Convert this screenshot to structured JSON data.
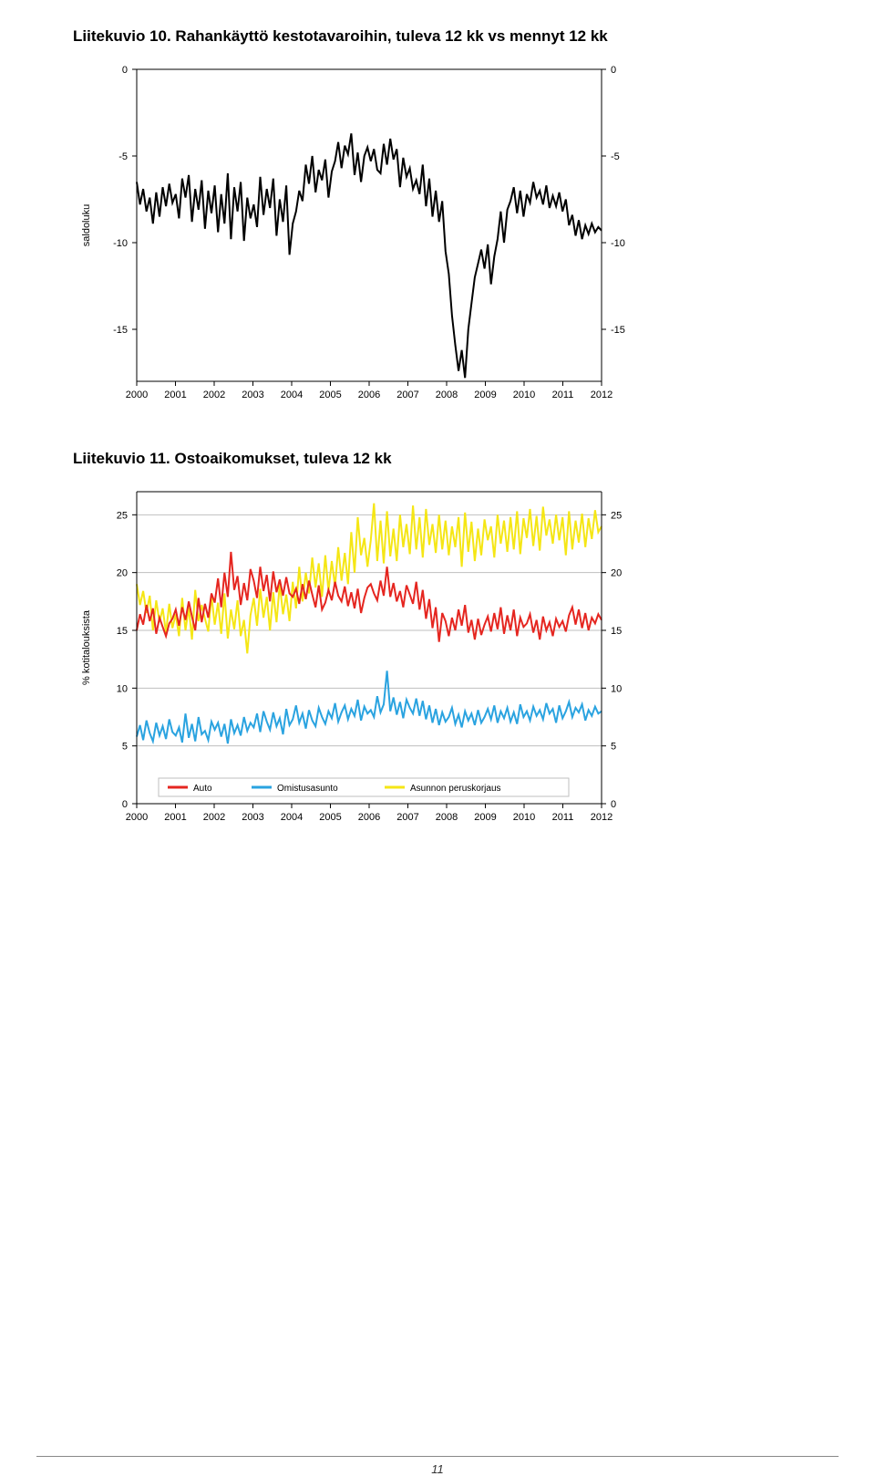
{
  "chart1": {
    "title": "Liitekuvio 10. Rahankäyttö kestotavaroihin, tuleva 12 kk vs mennyt 12 kk",
    "type": "line",
    "background_color": "#ffffff",
    "axis_color": "#000000",
    "grid_color": "#ffffff",
    "tick_fontsize": 11,
    "tick_color": "#000000",
    "ylabel": "saldoluku",
    "ylabel_fontsize": 11,
    "ylim": [
      -18,
      0
    ],
    "yticks": [
      0,
      -5,
      -10,
      -15
    ],
    "xlim": [
      2000,
      2012
    ],
    "xticks": [
      2000,
      2001,
      2002,
      2003,
      2004,
      2005,
      2006,
      2007,
      2008,
      2009,
      2010,
      2011,
      2012
    ],
    "line_color": "#000000",
    "line_width": 2,
    "data": [
      -6.5,
      -7.8,
      -6.9,
      -8.2,
      -7.4,
      -8.9,
      -7.1,
      -8.5,
      -6.8,
      -7.9,
      -6.6,
      -7.7,
      -7.2,
      -8.6,
      -6.3,
      -7.4,
      -6.1,
      -8.8,
      -6.9,
      -8.1,
      -6.4,
      -9.2,
      -7.0,
      -8.3,
      -6.7,
      -9.4,
      -7.2,
      -8.9,
      -6.0,
      -9.8,
      -6.8,
      -8.2,
      -6.5,
      -9.9,
      -7.4,
      -8.6,
      -7.8,
      -9.1,
      -6.2,
      -8.4,
      -6.9,
      -8.0,
      -6.3,
      -9.6,
      -7.5,
      -8.8,
      -6.7,
      -10.7,
      -8.9,
      -8.2,
      -7.0,
      -7.6,
      -5.5,
      -6.6,
      -5.0,
      -7.1,
      -5.8,
      -6.4,
      -5.2,
      -7.4,
      -5.9,
      -5.3,
      -4.2,
      -5.7,
      -4.4,
      -4.9,
      -3.7,
      -6.1,
      -4.8,
      -6.5,
      -5.0,
      -4.5,
      -5.3,
      -4.6,
      -5.8,
      -6.0,
      -4.3,
      -5.5,
      -4.0,
      -5.2,
      -4.6,
      -6.8,
      -5.1,
      -6.2,
      -5.7,
      -6.9,
      -6.4,
      -7.2,
      -5.5,
      -7.9,
      -6.3,
      -8.5,
      -7.0,
      -8.8,
      -7.6,
      -10.5,
      -11.8,
      -14.2,
      -15.9,
      -17.4,
      -16.2,
      -17.8,
      -15.0,
      -13.5,
      -12.0,
      -11.2,
      -10.4,
      -11.5,
      -10.1,
      -12.4,
      -10.8,
      -9.8,
      -8.2,
      -10.0,
      -8.1,
      -7.6,
      -6.8,
      -8.3,
      -7.0,
      -8.5,
      -7.2,
      -7.7,
      -6.5,
      -7.4,
      -7.0,
      -7.8,
      -6.7,
      -8.0,
      -7.3,
      -7.9,
      -7.1,
      -8.2,
      -7.5,
      -9.0,
      -8.4,
      -9.6,
      -8.7,
      -9.8,
      -9.0,
      -9.5,
      -8.9,
      -9.4,
      -9.1,
      -9.3
    ]
  },
  "chart2": {
    "title": "Liitekuvio 11. Ostoaikomukset, tuleva 12 kk",
    "type": "line",
    "background_color": "#ffffff",
    "axis_color": "#000000",
    "grid_color": "#bfbfbf",
    "tick_fontsize": 11,
    "tick_color": "#000000",
    "ylabel": "% kotitalouksista",
    "ylabel_fontsize": 11,
    "ylim": [
      0,
      27
    ],
    "yticks": [
      0,
      5,
      10,
      15,
      20,
      25
    ],
    "xlim": [
      2000,
      2012
    ],
    "xticks": [
      2000,
      2001,
      2002,
      2003,
      2004,
      2005,
      2006,
      2007,
      2008,
      2009,
      2010,
      2011,
      2012
    ],
    "legend": {
      "items": [
        {
          "label": "Auto",
          "color": "#e52620"
        },
        {
          "label": "Omistusasunto",
          "color": "#2aa3e0"
        },
        {
          "label": "Asunnon peruskorjaus",
          "color": "#f5e615"
        }
      ],
      "fontsize": 10,
      "box_color": "#bfbfbf"
    },
    "series": {
      "auto": {
        "color": "#e52620",
        "line_width": 2,
        "data": [
          15.0,
          16.4,
          15.5,
          17.2,
          15.8,
          16.9,
          14.7,
          16.1,
          15.3,
          14.5,
          15.6,
          16.0,
          16.8,
          15.4,
          17.0,
          15.9,
          17.5,
          16.2,
          15.0,
          17.8,
          15.7,
          17.3,
          16.1,
          18.2,
          17.4,
          19.5,
          17.0,
          20.0,
          17.9,
          21.8,
          18.5,
          19.7,
          17.2,
          19.1,
          17.6,
          20.3,
          19.3,
          17.8,
          20.5,
          18.4,
          19.8,
          17.5,
          20.1,
          18.3,
          19.4,
          18.0,
          19.6,
          18.2,
          17.9,
          18.6,
          17.3,
          19.0,
          17.7,
          19.3,
          18.1,
          17.0,
          18.9,
          16.8,
          17.4,
          18.5,
          17.6,
          19.2,
          18.0,
          17.5,
          18.8,
          17.1,
          18.3,
          16.9,
          18.6,
          16.5,
          17.8,
          18.7,
          19.0,
          18.2,
          17.6,
          19.3,
          18.0,
          20.5,
          17.9,
          19.1,
          17.5,
          18.4,
          17.0,
          18.9,
          18.1,
          17.3,
          19.2,
          16.8,
          18.5,
          16.0,
          17.7,
          15.2,
          17.0,
          14.0,
          16.5,
          15.8,
          14.5,
          16.1,
          15.0,
          16.8,
          15.4,
          17.2,
          14.8,
          15.9,
          14.2,
          16.0,
          14.6,
          15.5,
          16.2,
          14.9,
          16.5,
          15.1,
          17.0,
          14.7,
          16.3,
          15.0,
          16.8,
          14.5,
          16.1,
          15.3,
          15.6,
          16.4,
          14.8,
          15.9,
          14.2,
          16.2,
          15.0,
          15.7,
          14.5,
          16.0,
          15.3,
          15.8,
          14.9,
          16.3,
          17.0,
          15.5,
          16.8,
          15.2,
          16.5,
          15.0,
          16.1,
          15.6,
          16.4,
          15.9
        ]
      },
      "omistusasunto": {
        "color": "#2aa3e0",
        "line_width": 2,
        "data": [
          5.8,
          6.8,
          5.5,
          7.2,
          6.1,
          5.4,
          7.0,
          5.9,
          6.7,
          5.6,
          7.3,
          6.2,
          5.9,
          6.6,
          5.3,
          7.8,
          5.7,
          6.9,
          5.4,
          7.5,
          6.0,
          6.3,
          5.5,
          7.1,
          6.4,
          7.0,
          5.8,
          6.9,
          5.2,
          7.3,
          6.1,
          6.8,
          5.9,
          7.5,
          6.3,
          7.0,
          6.6,
          7.8,
          6.2,
          8.0,
          7.1,
          6.4,
          7.9,
          6.7,
          7.4,
          6.0,
          8.2,
          6.8,
          7.3,
          8.5,
          7.0,
          7.8,
          6.5,
          8.1,
          7.2,
          6.7,
          8.3,
          7.5,
          6.9,
          8.0,
          7.4,
          8.7,
          7.1,
          7.9,
          8.5,
          7.3,
          8.2,
          7.6,
          9.0,
          7.2,
          8.4,
          7.8,
          8.1,
          7.5,
          9.3,
          7.9,
          8.6,
          11.5,
          8.0,
          9.2,
          7.7,
          8.8,
          7.4,
          9.0,
          8.3,
          7.8,
          9.1,
          7.6,
          8.9,
          7.3,
          8.5,
          7.0,
          8.2,
          6.8,
          7.9,
          7.1,
          7.5,
          8.3,
          6.9,
          7.7,
          6.6,
          8.0,
          7.2,
          7.8,
          6.8,
          8.1,
          7.0,
          7.5,
          8.2,
          7.3,
          8.5,
          7.0,
          8.0,
          7.4,
          8.3,
          7.1,
          7.9,
          6.9,
          8.6,
          7.5,
          8.0,
          7.2,
          8.4,
          7.6,
          8.1,
          7.3,
          8.7,
          7.8,
          8.2,
          7.0,
          8.5,
          7.4,
          8.0,
          8.8,
          7.5,
          8.3,
          7.9,
          8.6,
          7.2,
          8.1,
          7.6,
          8.4,
          7.8,
          8.0
        ]
      },
      "peruskorjaus": {
        "color": "#f5e615",
        "line_width": 2,
        "data": [
          19.0,
          17.2,
          18.4,
          16.5,
          18.0,
          15.0,
          17.6,
          15.7,
          16.9,
          14.8,
          17.3,
          15.2,
          16.4,
          14.5,
          17.8,
          15.0,
          17.0,
          14.2,
          18.5,
          15.8,
          17.2,
          16.0,
          14.9,
          18.0,
          15.5,
          17.4,
          14.7,
          18.2,
          14.3,
          16.8,
          15.1,
          17.6,
          14.5,
          15.9,
          13.0,
          16.3,
          17.8,
          15.4,
          18.6,
          16.1,
          17.9,
          15.0,
          18.3,
          15.7,
          19.0,
          16.4,
          18.1,
          15.8,
          19.2,
          16.9,
          20.5,
          17.5,
          20.0,
          18.2,
          21.3,
          18.7,
          20.8,
          17.9,
          21.5,
          18.4,
          21.0,
          18.8,
          22.2,
          19.3,
          21.7,
          19.0,
          23.5,
          20.0,
          24.8,
          21.5,
          23.0,
          20.5,
          22.8,
          26.0,
          21.0,
          24.5,
          20.8,
          25.3,
          21.4,
          23.8,
          21.0,
          25.0,
          22.2,
          24.2,
          21.6,
          25.8,
          22.0,
          24.8,
          21.3,
          25.5,
          22.4,
          24.2,
          21.7,
          25.0,
          22.0,
          24.5,
          21.5,
          24.0,
          22.2,
          24.8,
          20.5,
          25.2,
          21.8,
          24.4,
          21.0,
          23.8,
          21.5,
          24.6,
          22.8,
          24.0,
          21.3,
          25.0,
          22.5,
          24.5,
          21.8,
          24.8,
          22.0,
          25.3,
          21.6,
          24.7,
          23.0,
          25.5,
          22.3,
          24.9,
          21.9,
          25.7,
          23.2,
          24.6,
          22.5,
          25.0,
          22.8,
          24.8,
          21.5,
          25.3,
          22.0,
          24.5,
          22.6,
          25.1,
          22.2,
          24.7,
          22.9,
          25.4,
          23.5,
          24.0
        ]
      }
    }
  },
  "footer": {
    "page_number": "11"
  }
}
